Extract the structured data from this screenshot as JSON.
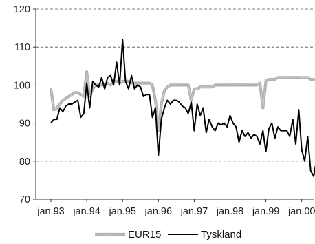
{
  "chart_data": {
    "type": "line",
    "title": "",
    "xlabel": "",
    "ylabel": "",
    "ylim": [
      70,
      120
    ],
    "y_ticks": [
      "120",
      "110",
      "100",
      "90",
      "80",
      "70"
    ],
    "x_tick_labels": [
      "jan.93",
      "jan.94",
      "jan.95",
      "jan.96",
      "jan.97",
      "jan.98",
      "jan.99",
      "jan.00"
    ],
    "grid": "horizontal dashed",
    "legend_position": "bottom",
    "x_unit": "month index from jan.93",
    "series": [
      {
        "name": "EUR15",
        "color": "#b0b0b0",
        "points": [
          [
            0,
            99
          ],
          [
            1,
            93.5
          ],
          [
            2,
            94
          ],
          [
            3,
            95
          ],
          [
            4,
            96
          ],
          [
            5,
            96.5
          ],
          [
            6,
            97
          ],
          [
            7,
            97.5
          ],
          [
            8,
            98
          ],
          [
            9,
            98
          ],
          [
            10,
            97.5
          ],
          [
            11,
            97
          ],
          [
            12,
            103.5
          ],
          [
            13,
            97
          ],
          [
            14,
            99
          ],
          [
            15,
            100
          ],
          [
            16,
            100
          ],
          [
            17,
            100
          ],
          [
            18,
            100
          ],
          [
            19,
            100.5
          ],
          [
            20,
            100
          ],
          [
            21,
            101
          ],
          [
            22,
            101
          ],
          [
            23,
            100.5
          ],
          [
            24,
            101
          ],
          [
            25,
            101
          ],
          [
            26,
            101
          ],
          [
            27,
            100.5
          ],
          [
            28,
            100.5
          ],
          [
            29,
            100.5
          ],
          [
            30,
            100.5
          ],
          [
            31,
            100.5
          ],
          [
            32,
            100.5
          ],
          [
            33,
            100.5
          ],
          [
            34,
            100
          ],
          [
            35,
            96
          ],
          [
            36,
            88
          ],
          [
            37,
            95
          ],
          [
            38,
            98.5
          ],
          [
            39,
            99.5
          ],
          [
            40,
            100
          ],
          [
            41,
            100
          ],
          [
            42,
            100
          ],
          [
            43,
            100
          ],
          [
            44,
            100
          ],
          [
            45,
            100
          ],
          [
            46,
            100
          ],
          [
            47,
            96
          ],
          [
            48,
            99
          ],
          [
            49,
            99
          ],
          [
            50,
            99.5
          ],
          [
            51,
            99.5
          ],
          [
            52,
            99.5
          ],
          [
            53,
            99.5
          ],
          [
            54,
            99.5
          ],
          [
            55,
            100
          ],
          [
            56,
            100
          ],
          [
            57,
            100
          ],
          [
            58,
            100
          ],
          [
            59,
            100
          ],
          [
            60,
            100
          ],
          [
            61,
            100
          ],
          [
            62,
            100
          ],
          [
            63,
            100
          ],
          [
            64,
            100
          ],
          [
            65,
            100
          ],
          [
            66,
            100
          ],
          [
            67,
            100
          ],
          [
            68,
            100
          ],
          [
            69,
            100
          ],
          [
            70,
            100.5
          ],
          [
            71,
            94
          ],
          [
            72,
            101
          ],
          [
            73,
            101.5
          ],
          [
            74,
            101.5
          ],
          [
            75,
            101.5
          ],
          [
            76,
            102
          ],
          [
            77,
            102
          ],
          [
            78,
            102
          ],
          [
            79,
            102
          ],
          [
            80,
            102
          ],
          [
            81,
            102
          ],
          [
            82,
            102
          ],
          [
            83,
            102
          ],
          [
            84,
            102
          ],
          [
            85,
            102
          ],
          [
            86,
            102
          ],
          [
            87,
            101.5
          ],
          [
            88,
            101.5
          ]
        ]
      },
      {
        "name": "Tyskland",
        "color": "#000000",
        "points": [
          [
            0,
            90
          ],
          [
            1,
            91
          ],
          [
            2,
            91
          ],
          [
            3,
            94
          ],
          [
            4,
            93
          ],
          [
            5,
            94.5
          ],
          [
            6,
            95
          ],
          [
            7,
            95
          ],
          [
            8,
            95.5
          ],
          [
            9,
            96
          ],
          [
            10,
            91.5
          ],
          [
            11,
            92.5
          ],
          [
            12,
            100.5
          ],
          [
            13,
            94
          ],
          [
            14,
            101
          ],
          [
            15,
            100
          ],
          [
            16,
            99.5
          ],
          [
            17,
            102
          ],
          [
            18,
            99
          ],
          [
            19,
            102
          ],
          [
            20,
            102.5
          ],
          [
            21,
            100
          ],
          [
            22,
            106
          ],
          [
            23,
            100
          ],
          [
            24,
            112
          ],
          [
            25,
            101
          ],
          [
            26,
            99
          ],
          [
            27,
            102.5
          ],
          [
            28,
            99
          ],
          [
            29,
            100
          ],
          [
            30,
            99.5
          ],
          [
            31,
            97
          ],
          [
            32,
            97.5
          ],
          [
            33,
            97.5
          ],
          [
            34,
            91.5
          ],
          [
            35,
            94
          ],
          [
            36,
            81.5
          ],
          [
            37,
            91
          ],
          [
            38,
            94
          ],
          [
            39,
            96
          ],
          [
            40,
            95
          ],
          [
            41,
            96
          ],
          [
            42,
            96
          ],
          [
            43,
            95.5
          ],
          [
            44,
            94.5
          ],
          [
            45,
            94
          ],
          [
            46,
            92.5
          ],
          [
            47,
            95.5
          ],
          [
            48,
            88
          ],
          [
            49,
            95
          ],
          [
            50,
            92
          ],
          [
            51,
            94
          ],
          [
            52,
            87.5
          ],
          [
            53,
            91
          ],
          [
            54,
            89
          ],
          [
            55,
            88
          ],
          [
            56,
            90
          ],
          [
            57,
            89.5
          ],
          [
            58,
            90
          ],
          [
            59,
            89
          ],
          [
            60,
            92
          ],
          [
            61,
            90
          ],
          [
            62,
            89
          ],
          [
            63,
            85
          ],
          [
            64,
            88
          ],
          [
            65,
            86.5
          ],
          [
            66,
            87.5
          ],
          [
            67,
            86
          ],
          [
            68,
            87
          ],
          [
            69,
            86.5
          ],
          [
            70,
            84.5
          ],
          [
            71,
            88
          ],
          [
            72,
            82.5
          ],
          [
            73,
            88.5
          ],
          [
            74,
            90
          ],
          [
            75,
            86
          ],
          [
            76,
            89
          ],
          [
            77,
            88
          ],
          [
            78,
            88
          ],
          [
            79,
            88
          ],
          [
            80,
            86.5
          ],
          [
            81,
            91
          ],
          [
            82,
            84.5
          ],
          [
            83,
            93.5
          ],
          [
            84,
            83
          ],
          [
            85,
            80
          ],
          [
            86,
            86.5
          ],
          [
            87,
            77.5
          ],
          [
            88,
            76
          ],
          [
            89,
            80.5
          ]
        ]
      }
    ]
  }
}
